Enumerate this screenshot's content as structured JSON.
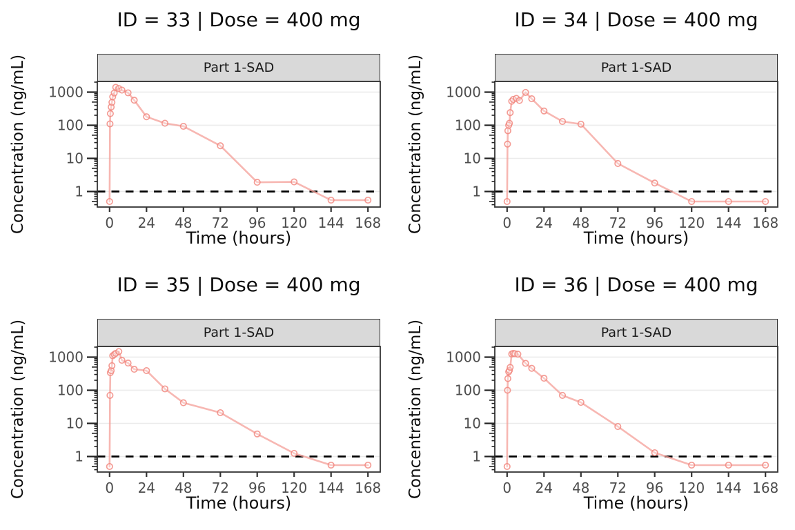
{
  "style": {
    "line_color": "#F49B94",
    "marker_color": "#F1837B",
    "lloq_color": "#000000",
    "grid_color": "#EBEBEB",
    "strip_fill": "#D9D9D9",
    "panel_border": "#333333",
    "tick_label_color": "#4D4D4D",
    "axis_title_color": "#0D0D0D"
  },
  "chart_data": [
    {
      "type": "line",
      "title": "ID = 33 | Dose = 400 mg",
      "strip": "Part 1-SAD",
      "xlabel": "Time (hours)",
      "ylabel": "Concentration (ng/mL)",
      "x_ticks": [
        0,
        24,
        48,
        72,
        96,
        120,
        144,
        168
      ],
      "y_ticks": [
        1,
        10,
        100,
        1000
      ],
      "y_scale": "log",
      "xlim": [
        -8,
        176
      ],
      "ylim": [
        0.34,
        2100
      ],
      "lloq": 1,
      "grid": "major-horizontal",
      "legend": "none",
      "series": {
        "name": "concentration",
        "t": [
          0,
          0.25,
          0.5,
          1,
          1.5,
          2,
          3,
          4,
          6,
          8,
          12,
          16,
          24,
          36,
          48,
          72,
          96,
          120,
          144,
          168
        ],
        "c": [
          0.5,
          110,
          225,
          355,
          490,
          720,
          940,
          1400,
          1280,
          1150,
          950,
          570,
          180,
          115,
          93,
          24,
          1.9,
          1.95,
          0.55,
          0.55
        ]
      }
    },
    {
      "type": "line",
      "title": "ID = 34 | Dose = 400 mg",
      "strip": "Part 1-SAD",
      "xlabel": "Time (hours)",
      "ylabel": "Concentration (ng/mL)",
      "x_ticks": [
        0,
        24,
        48,
        72,
        96,
        120,
        144,
        168
      ],
      "y_ticks": [
        1,
        10,
        100,
        1000
      ],
      "y_scale": "log",
      "xlim": [
        -8,
        176
      ],
      "ylim": [
        0.34,
        2100
      ],
      "lloq": 1,
      "grid": "major-horizontal",
      "legend": "none",
      "series": {
        "name": "concentration",
        "t": [
          0,
          0.25,
          0.5,
          1,
          1.5,
          2,
          3,
          4,
          6,
          8,
          12,
          16,
          24,
          36,
          48,
          72,
          96,
          120,
          144,
          168
        ],
        "c": [
          0.5,
          27,
          68,
          100,
          115,
          240,
          530,
          600,
          650,
          560,
          980,
          630,
          270,
          130,
          108,
          7,
          1.8,
          0.5,
          0.5,
          0.5
        ]
      }
    },
    {
      "type": "line",
      "title": "ID = 35 | Dose = 400 mg",
      "strip": "Part 1-SAD",
      "xlabel": "Time (hours)",
      "ylabel": "Concentration (ng/mL)",
      "x_ticks": [
        0,
        24,
        48,
        72,
        96,
        120,
        144,
        168
      ],
      "y_ticks": [
        1,
        10,
        100,
        1000
      ],
      "y_scale": "log",
      "xlim": [
        -8,
        176
      ],
      "ylim": [
        0.34,
        2100
      ],
      "lloq": 1,
      "grid": "major-horizontal",
      "legend": "none",
      "series": {
        "name": "concentration",
        "t": [
          0,
          0.25,
          0.5,
          1,
          1.5,
          2,
          3,
          4,
          6,
          8,
          12,
          16,
          24,
          36,
          48,
          72,
          96,
          120,
          144,
          168
        ],
        "c": [
          0.5,
          70,
          340,
          390,
          550,
          1100,
          1200,
          1300,
          1470,
          800,
          660,
          430,
          390,
          110,
          42,
          21,
          4.8,
          1.25,
          0.55,
          0.55
        ]
      }
    },
    {
      "type": "line",
      "title": "ID = 36 | Dose = 400 mg",
      "strip": "Part 1-SAD",
      "xlabel": "Time (hours)",
      "ylabel": "Concentration (ng/mL)",
      "x_ticks": [
        0,
        24,
        48,
        72,
        96,
        120,
        144,
        168
      ],
      "y_ticks": [
        1,
        10,
        100,
        1000
      ],
      "y_scale": "log",
      "xlim": [
        -8,
        176
      ],
      "ylim": [
        0.34,
        2100
      ],
      "lloq": 1,
      "grid": "major-horizontal",
      "legend": "none",
      "series": {
        "name": "concentration",
        "t": [
          0,
          0.25,
          0.5,
          1,
          1.5,
          2,
          3,
          4,
          5,
          7,
          12,
          16,
          24,
          36,
          48,
          72,
          96,
          120,
          144,
          168
        ],
        "c": [
          0.5,
          100,
          225,
          360,
          400,
          490,
          1240,
          1300,
          1270,
          1230,
          650,
          460,
          230,
          70,
          43,
          8,
          1.3,
          0.55,
          0.55,
          0.55
        ]
      }
    }
  ]
}
